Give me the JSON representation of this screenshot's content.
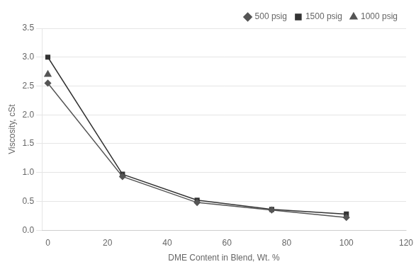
{
  "chart_data": {
    "type": "line",
    "xlabel": "DME Content in Blend, Wt. %",
    "ylabel": "Viscosity, cSt",
    "series": [
      {
        "name": "500 psig",
        "x": [
          0,
          25,
          50,
          75,
          100
        ],
        "values": [
          2.55,
          0.93,
          0.48,
          0.35,
          0.22
        ],
        "color": "#555555",
        "marker": "diamond",
        "line_style": "solid"
      },
      {
        "name": "1500 psig",
        "x": [
          0,
          25,
          50,
          75,
          100
        ],
        "values": [
          3.0,
          0.97,
          0.52,
          0.36,
          0.28
        ],
        "color": "#333333",
        "marker": "square",
        "line_style": "solid"
      },
      {
        "name": "1000 psig",
        "x": [
          0
        ],
        "values": [
          2.7
        ],
        "color": "#555555",
        "marker": "triangle",
        "line_style": "none"
      }
    ],
    "xlim": [
      -2,
      120
    ],
    "xticks": [
      0,
      20,
      40,
      60,
      80,
      100,
      120
    ],
    "ylim": [
      0,
      3.5
    ],
    "yticks": [
      {
        "value": 0,
        "label": "0.0"
      },
      {
        "value": 0.5,
        "label": "0.5"
      },
      {
        "value": 1,
        "label": "1.0"
      },
      {
        "value": 1.5,
        "label": "1.5"
      },
      {
        "value": 2,
        "label": "2.0"
      },
      {
        "value": 2.5,
        "label": "2.5"
      },
      {
        "value": 3,
        "label": "3.0"
      },
      {
        "value": 3.5,
        "label": "3.5"
      }
    ],
    "grid": "y",
    "legend": "upper right"
  }
}
